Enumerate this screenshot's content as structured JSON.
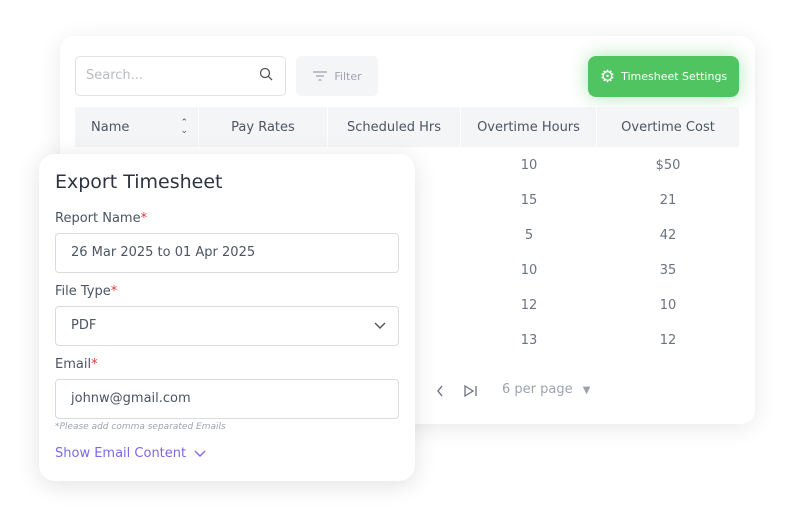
{
  "toolbar": {
    "search_placeholder": "Search...",
    "filter_label": "Filter",
    "settings_label": "Timesheet Settings"
  },
  "table": {
    "columns": [
      "Name",
      "Pay Rates",
      "Scheduled Hrs",
      "Overtime Hours",
      "Overtime Cost"
    ],
    "rows": [
      {
        "overtime_hours": "10",
        "overtime_cost": "$50"
      },
      {
        "overtime_hours": "15",
        "overtime_cost": "21"
      },
      {
        "overtime_hours": "5",
        "overtime_cost": "42"
      },
      {
        "overtime_hours": "10",
        "overtime_cost": "35"
      },
      {
        "overtime_hours": "12",
        "overtime_cost": "10"
      },
      {
        "overtime_hours": "13",
        "overtime_cost": "12"
      }
    ]
  },
  "pagination": {
    "per_page": "6 per page"
  },
  "modal": {
    "title": "Export Timesheet",
    "report_name_label": "Report Name",
    "report_name_value": "26 Mar 2025 to 01 Apr 2025",
    "file_type_label": "File Type",
    "file_type_value": "PDF",
    "email_label": "Email",
    "email_value": "johnw@gmail.com",
    "email_hint": "*Please add comma separated Emails",
    "show_email_content": "Show Email Content",
    "required_mark": "*"
  },
  "colors": {
    "accent": "#4fc460",
    "link": "#7b68ee",
    "required": "#e53935"
  }
}
